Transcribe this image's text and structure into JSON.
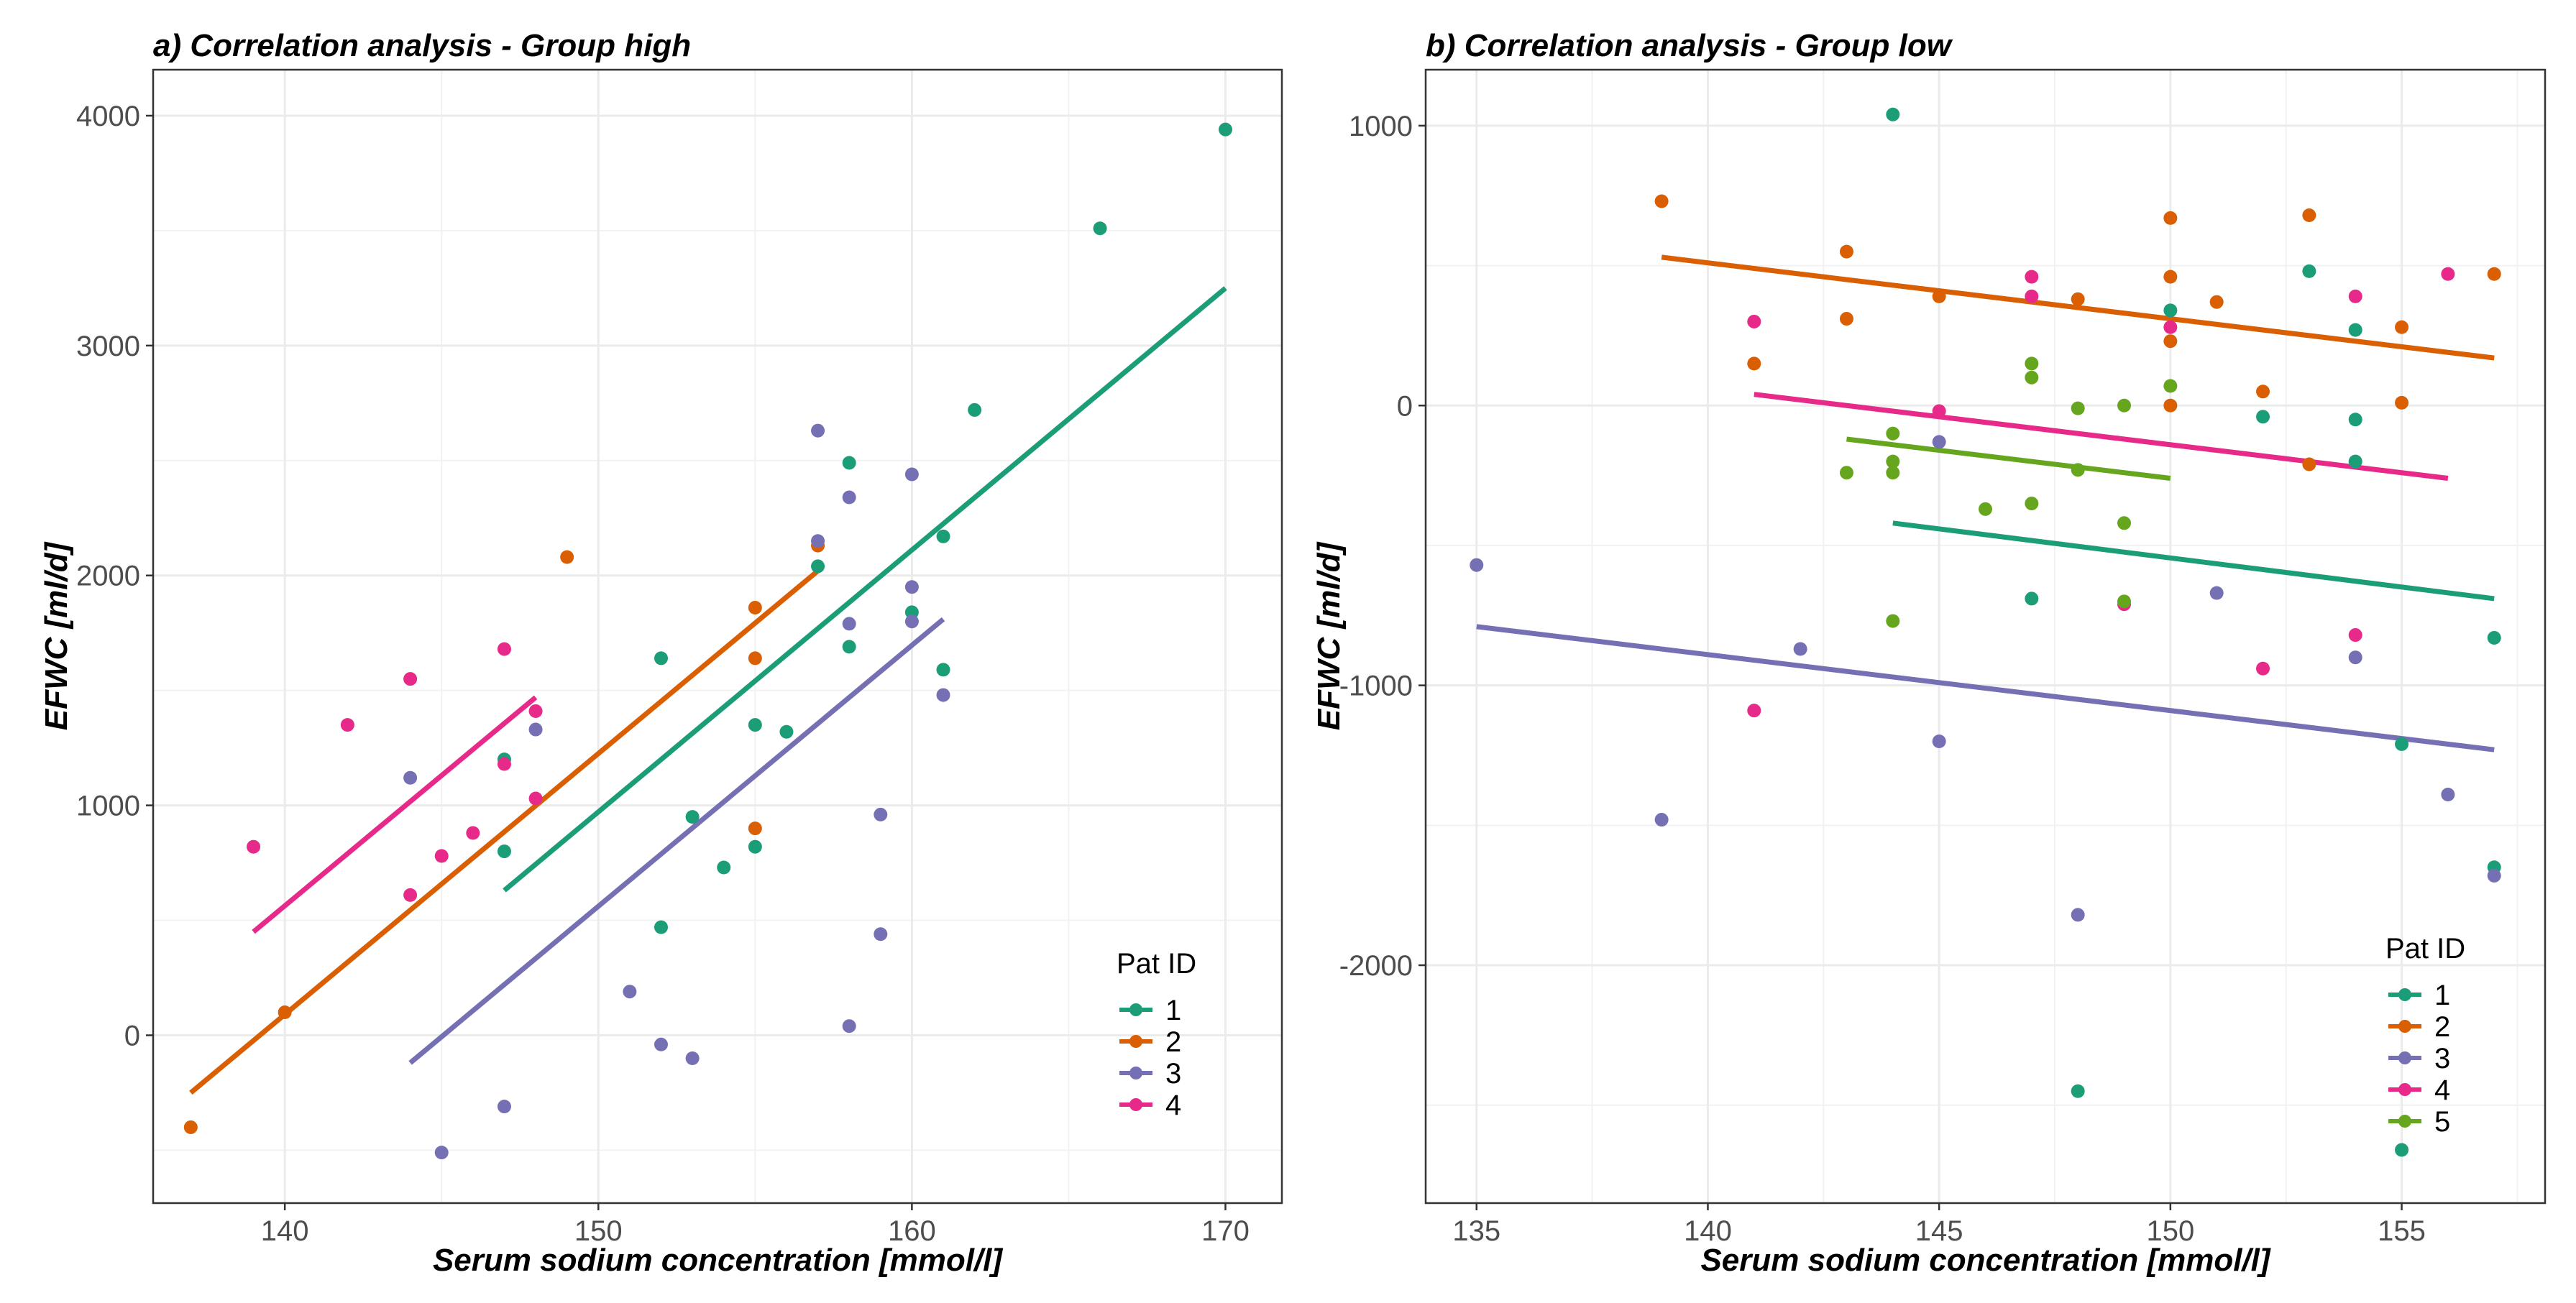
{
  "chart_data": [
    {
      "type": "scatter",
      "title": "a) Correlation analysis - Group high",
      "xlabel": "Serum sodium concentration [mmol/l]",
      "ylabel": "EFWC [ml/d]",
      "xlim": [
        135.8,
        171.8
      ],
      "ylim": [
        -730,
        4200
      ],
      "xticks": [
        140,
        150,
        160,
        170
      ],
      "yticks": [
        0,
        1000,
        2000,
        3000,
        4000
      ],
      "grid": true,
      "legend": {
        "title": "Pat ID",
        "position": "bottom-right"
      },
      "series": [
        {
          "name": "1",
          "color": "#1b9e77",
          "points": [
            [
              147,
              1200
            ],
            [
              147,
              800
            ],
            [
              152,
              1640
            ],
            [
              152,
              470
            ],
            [
              153,
              950
            ],
            [
              154,
              730
            ],
            [
              155,
              1350
            ],
            [
              155,
              820
            ],
            [
              156,
              1320
            ],
            [
              157,
              2040
            ],
            [
              158,
              2490
            ],
            [
              158,
              1690
            ],
            [
              160,
              1840
            ],
            [
              161,
              2170
            ],
            [
              161,
              1590
            ],
            [
              162,
              2720
            ],
            [
              166,
              3510
            ],
            [
              170,
              3940
            ]
          ],
          "fit": [
            [
              147,
              630
            ],
            [
              170,
              3250
            ]
          ]
        },
        {
          "name": "2",
          "color": "#d95f02",
          "points": [
            [
              137,
              -400
            ],
            [
              140,
              100
            ],
            [
              149,
              2080
            ],
            [
              155,
              1860
            ],
            [
              155,
              1640
            ],
            [
              155,
              900
            ],
            [
              157,
              2130
            ]
          ],
          "fit": [
            [
              137,
              -250
            ],
            [
              157,
              2020
            ]
          ]
        },
        {
          "name": "3",
          "color": "#7570b3",
          "points": [
            [
              144,
              1120
            ],
            [
              145,
              -510
            ],
            [
              147,
              -310
            ],
            [
              148,
              1330
            ],
            [
              151,
              190
            ],
            [
              152,
              -40
            ],
            [
              153,
              -100
            ],
            [
              157,
              2630
            ],
            [
              157,
              2150
            ],
            [
              158,
              2340
            ],
            [
              158,
              1790
            ],
            [
              158,
              40
            ],
            [
              159,
              960
            ],
            [
              159,
              440
            ],
            [
              160,
              2440
            ],
            [
              160,
              1950
            ],
            [
              160,
              1800
            ],
            [
              161,
              1480
            ]
          ],
          "fit": [
            [
              144,
              -120
            ],
            [
              161,
              1810
            ]
          ]
        },
        {
          "name": "4",
          "color": "#e7298a",
          "points": [
            [
              139,
              820
            ],
            [
              142,
              1350
            ],
            [
              144,
              1550
            ],
            [
              144,
              610
            ],
            [
              145,
              780
            ],
            [
              146,
              880
            ],
            [
              147,
              1680
            ],
            [
              147,
              1180
            ],
            [
              148,
              1410
            ],
            [
              148,
              1030
            ]
          ],
          "fit": [
            [
              139,
              450
            ],
            [
              148,
              1470
            ]
          ]
        }
      ]
    },
    {
      "type": "scatter",
      "title": "b) Correlation analysis - Group low",
      "xlabel": "Serum sodium concentration [mmol/l]",
      "ylabel": "EFWC [ml/d]",
      "xlim": [
        133.9,
        158.1
      ],
      "ylim": [
        -2850,
        1200
      ],
      "xticks": [
        135,
        140,
        145,
        150,
        155
      ],
      "yticks": [
        -2000,
        -1000,
        0,
        1000
      ],
      "grid": true,
      "legend": {
        "title": "Pat ID",
        "position": "bottom-right"
      },
      "series": [
        {
          "name": "1",
          "color": "#1b9e77",
          "points": [
            [
              144,
              1040
            ],
            [
              147,
              -690
            ],
            [
              148,
              -2450
            ],
            [
              150,
              340
            ],
            [
              152,
              -40
            ],
            [
              153,
              480
            ],
            [
              154,
              270
            ],
            [
              154,
              -50
            ],
            [
              154,
              -200
            ],
            [
              155,
              -1210
            ],
            [
              155,
              -2660
            ],
            [
              157,
              -830
            ],
            [
              157,
              -1650
            ]
          ],
          "fit": [
            [
              144,
              -420
            ],
            [
              157,
              -690
            ]
          ]
        },
        {
          "name": "2",
          "color": "#d95f02",
          "points": [
            [
              139,
              730
            ],
            [
              141,
              150
            ],
            [
              143,
              550
            ],
            [
              143,
              310
            ],
            [
              145,
              390
            ],
            [
              148,
              380
            ],
            [
              150,
              670
            ],
            [
              150,
              460
            ],
            [
              150,
              230
            ],
            [
              150,
              0
            ],
            [
              151,
              370
            ],
            [
              152,
              50
            ],
            [
              153,
              -210
            ],
            [
              153,
              680
            ],
            [
              155,
              280
            ],
            [
              155,
              10
            ],
            [
              157,
              470
            ]
          ],
          "fit": [
            [
              139,
              530
            ],
            [
              157,
              170
            ]
          ]
        },
        {
          "name": "3",
          "color": "#7570b3",
          "points": [
            [
              135,
              -570
            ],
            [
              139,
              -1480
            ],
            [
              142,
              -870
            ],
            [
              145,
              -1200
            ],
            [
              145,
              -130
            ],
            [
              148,
              -1820
            ],
            [
              151,
              -670
            ],
            [
              154,
              -900
            ],
            [
              156,
              -1390
            ],
            [
              157,
              -1680
            ]
          ],
          "fit": [
            [
              135,
              -790
            ],
            [
              157,
              -1230
            ]
          ]
        },
        {
          "name": "4",
          "color": "#e7298a",
          "points": [
            [
              141,
              300
            ],
            [
              141,
              -1090
            ],
            [
              145,
              -20
            ],
            [
              147,
              460
            ],
            [
              147,
              390
            ],
            [
              149,
              -710
            ],
            [
              150,
              280
            ],
            [
              152,
              -940
            ],
            [
              154,
              390
            ],
            [
              154,
              -820
            ],
            [
              156,
              470
            ]
          ],
          "fit": [
            [
              141,
              40
            ],
            [
              156,
              -260
            ]
          ]
        },
        {
          "name": "5",
          "color": "#66a61e",
          "points": [
            [
              143,
              -240
            ],
            [
              144,
              -100
            ],
            [
              144,
              -200
            ],
            [
              144,
              -240
            ],
            [
              144,
              -770
            ],
            [
              146,
              -370
            ],
            [
              147,
              150
            ],
            [
              147,
              100
            ],
            [
              147,
              -350
            ],
            [
              148,
              -10
            ],
            [
              148,
              -230
            ],
            [
              149,
              0
            ],
            [
              149,
              -420
            ],
            [
              149,
              -700
            ],
            [
              150,
              70
            ]
          ],
          "fit": [
            [
              143,
              -120
            ],
            [
              150,
              -260
            ]
          ]
        }
      ]
    }
  ]
}
